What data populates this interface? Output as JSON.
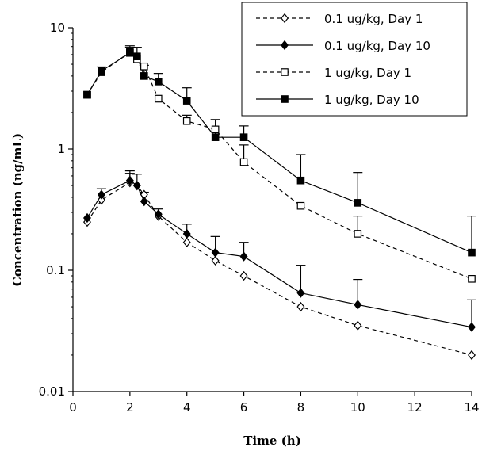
{
  "chart_data": {
    "type": "line",
    "xlabel": "Time (h)",
    "ylabel": "Concentration (ng/mL)",
    "xlim": [
      0,
      14
    ],
    "ylim": [
      0.01,
      10
    ],
    "yscale": "log",
    "x_ticks": [
      0,
      2,
      4,
      6,
      8,
      10,
      12,
      14
    ],
    "x_tick_labels": [
      "0",
      "2",
      "4",
      "6",
      "8",
      "10",
      "12",
      "14"
    ],
    "y_ticks": [
      0.01,
      0.1,
      1,
      10
    ],
    "y_tick_labels": [
      "0.01",
      "0.1",
      "1",
      "10"
    ],
    "grid": false,
    "legend_position": "top-right",
    "series": [
      {
        "name": "0.1 ug/kg, Day 1",
        "line": "dashed",
        "marker": "open-diamond",
        "color": "#000000",
        "x": [
          0.5,
          1,
          2,
          2.25,
          2.5,
          3,
          4,
          5,
          6,
          8,
          10,
          14
        ],
        "y": [
          0.25,
          0.38,
          0.53,
          0.5,
          0.42,
          0.28,
          0.17,
          0.12,
          0.09,
          0.05,
          0.035,
          0.02
        ],
        "err": [
          null,
          null,
          0.1,
          null,
          null,
          null,
          null,
          null,
          null,
          null,
          null,
          null
        ]
      },
      {
        "name": "0.1 ug/kg, Day 10",
        "line": "solid",
        "marker": "filled-diamond",
        "color": "#000000",
        "x": [
          0.5,
          1,
          2,
          2.25,
          2.5,
          3,
          4,
          5,
          6,
          8,
          10,
          14
        ],
        "y": [
          0.27,
          0.42,
          0.55,
          0.5,
          0.37,
          0.29,
          0.2,
          0.14,
          0.13,
          0.065,
          0.052,
          0.034
        ],
        "err": [
          null,
          0.05,
          0.11,
          0.12,
          0.07,
          0.03,
          0.04,
          0.05,
          0.04,
          0.045,
          0.032,
          0.023
        ]
      },
      {
        "name": "1 ug/kg, Day 1",
        "line": "dashed",
        "marker": "open-square",
        "color": "#000000",
        "x": [
          0.5,
          1,
          2,
          2.25,
          2.5,
          3,
          4,
          5,
          6,
          8,
          10,
          14
        ],
        "y": [
          2.8,
          4.3,
          6.3,
          5.5,
          4.8,
          2.6,
          1.7,
          1.45,
          0.78,
          0.34,
          0.2,
          0.085
        ],
        "err": [
          null,
          null,
          0.6,
          null,
          null,
          null,
          0.2,
          null,
          0.3,
          null,
          0.08,
          null
        ]
      },
      {
        "name": "1 ug/kg, Day 10",
        "line": "solid",
        "marker": "filled-square",
        "color": "#000000",
        "x": [
          0.5,
          1,
          2,
          2.25,
          2.5,
          3,
          4,
          5,
          6,
          8,
          10,
          14
        ],
        "y": [
          2.8,
          4.4,
          6.2,
          5.8,
          4.0,
          3.6,
          2.5,
          1.25,
          1.25,
          0.55,
          0.36,
          0.14
        ],
        "err": [
          null,
          0.35,
          0.9,
          1.1,
          0.9,
          0.6,
          0.7,
          0.5,
          0.3,
          0.35,
          0.28,
          0.14
        ]
      }
    ]
  }
}
